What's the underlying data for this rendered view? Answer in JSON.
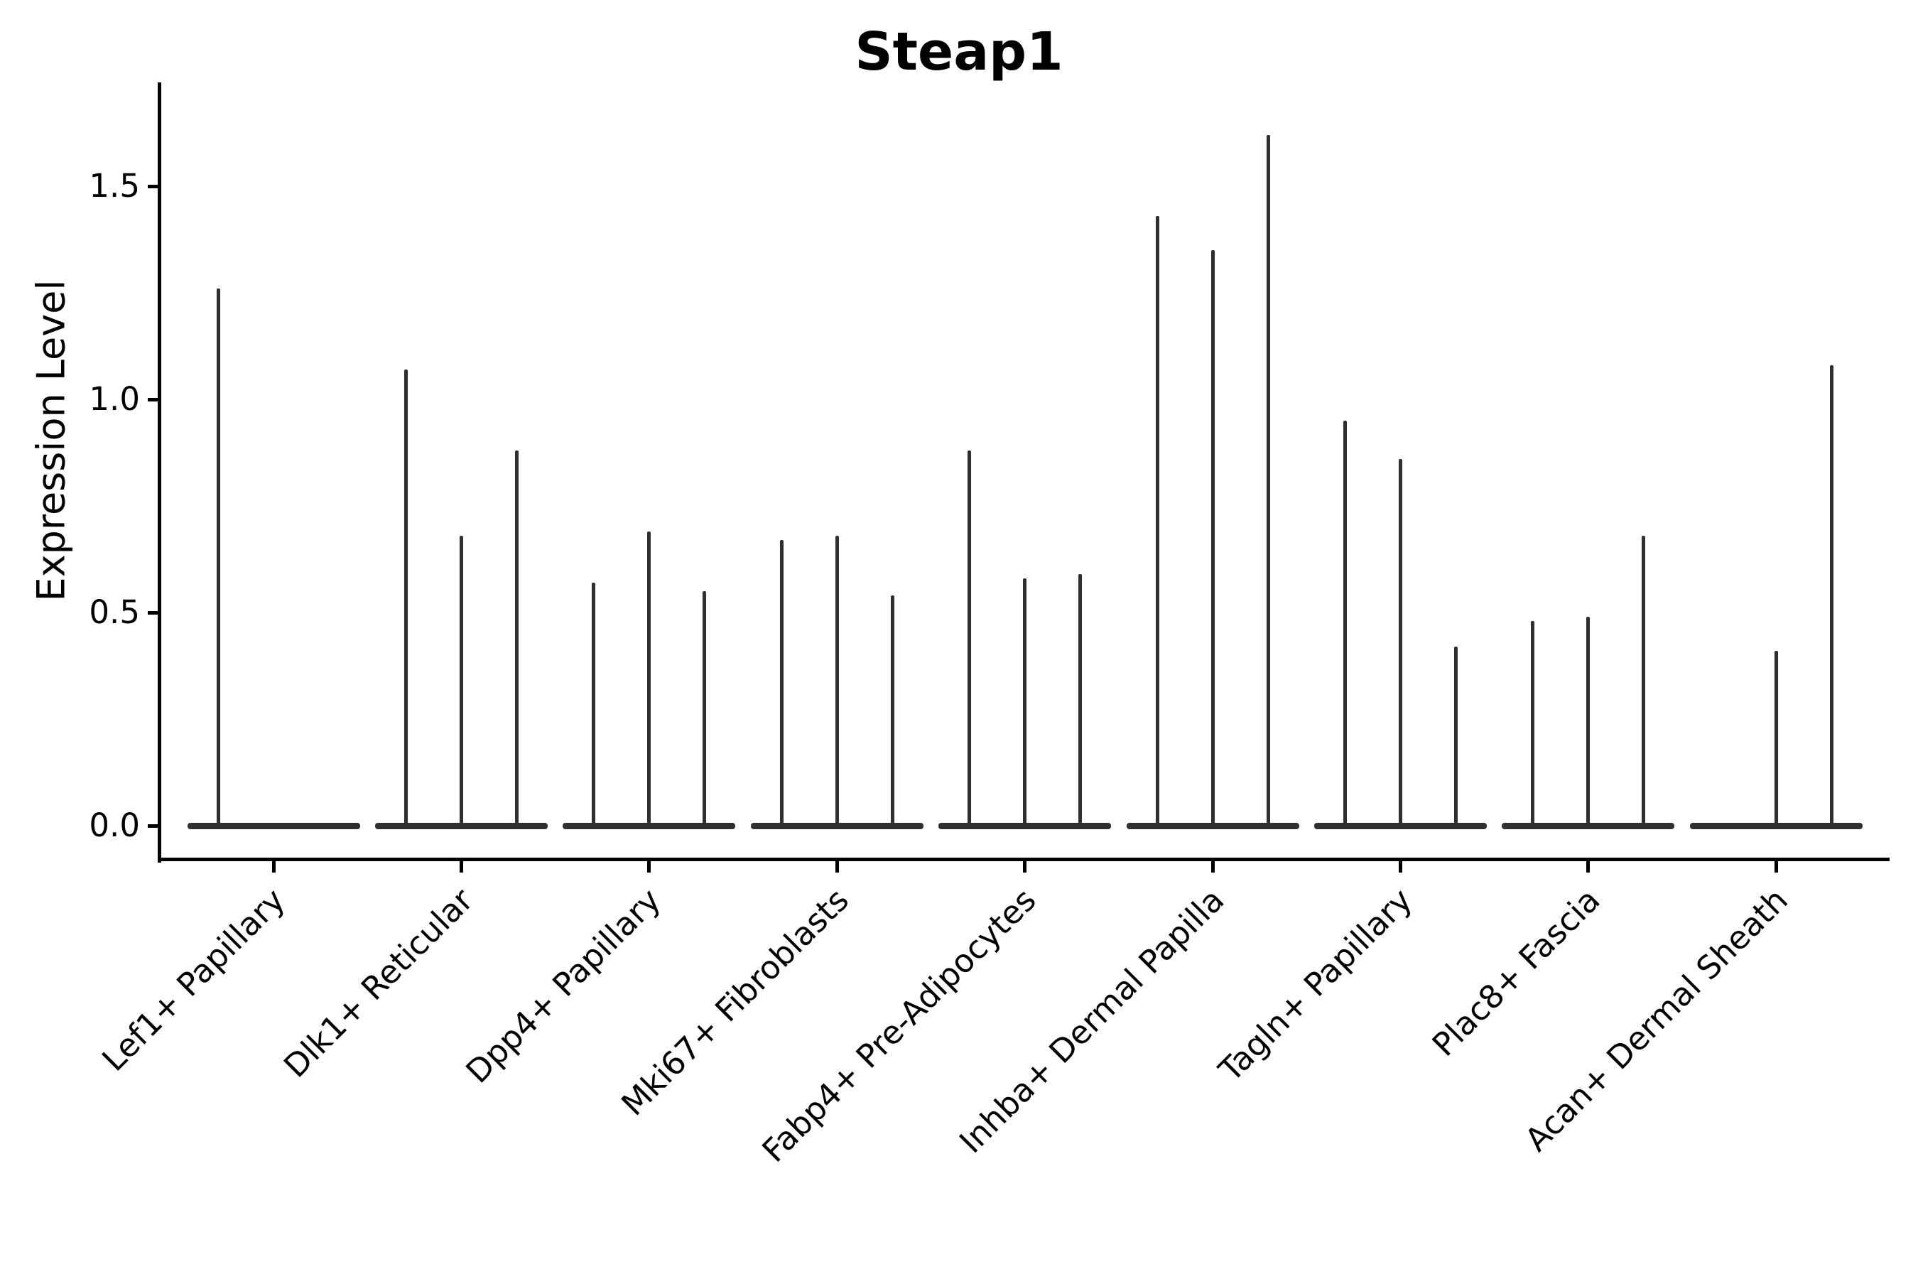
{
  "chart_data": {
    "type": "violin",
    "title": "Steap1",
    "ylabel": "Expression Level",
    "xlabel": "",
    "grid": false,
    "legend": "none",
    "ylim": [
      -0.08,
      1.74
    ],
    "yticks": [
      0.0,
      0.5,
      1.0,
      1.5
    ],
    "ytick_labels": [
      "0.0",
      "0.5",
      "1.0",
      "1.5"
    ],
    "violins_per_category": 3,
    "categories": [
      "Lef1+ Papillary",
      "Dlk1+ Reticular",
      "Dpp4+ Papillary",
      "Mki67+ Fibroblasts",
      "Fabp4+ Pre-Adipocytes",
      "Inhba+ Dermal Papilla",
      "Tagln+ Papillary",
      "Plac8+ Fascia",
      "Acan+ Dermal Sheath"
    ],
    "series": [
      {
        "category": "Lef1+ Papillary",
        "max_expression_per_violin": [
          1.26,
          0,
          0
        ]
      },
      {
        "category": "Dlk1+ Reticular",
        "max_expression_per_violin": [
          1.07,
          0.68,
          0.88
        ]
      },
      {
        "category": "Dpp4+ Papillary",
        "max_expression_per_violin": [
          0.57,
          0.69,
          0.55
        ]
      },
      {
        "category": "Mki67+ Fibroblasts",
        "max_expression_per_violin": [
          0.67,
          0.68,
          0.54
        ]
      },
      {
        "category": "Fabp4+ Pre-Adipocytes",
        "max_expression_per_violin": [
          0.88,
          0.58,
          0.59
        ]
      },
      {
        "category": "Inhba+ Dermal Papilla",
        "max_expression_per_violin": [
          1.43,
          1.35,
          1.62
        ]
      },
      {
        "category": "Tagln+ Papillary",
        "max_expression_per_violin": [
          0.95,
          0.86,
          0.42
        ]
      },
      {
        "category": "Plac8+ Fascia",
        "max_expression_per_violin": [
          0.48,
          0.49,
          0.68
        ]
      },
      {
        "category": "Acan+ Dermal Sheath",
        "max_expression_per_violin": [
          0,
          0.41,
          1.08
        ]
      }
    ],
    "colors": {
      "violin": "#2f2f2f",
      "axis": "#000000",
      "text": "#000000",
      "background": "#ffffff"
    }
  }
}
